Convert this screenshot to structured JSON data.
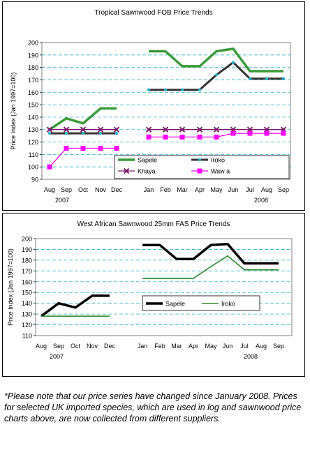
{
  "chart_data": [
    {
      "type": "line",
      "title": "Tropical Sawnwood FOB Price Trends",
      "xlabel": "",
      "ylabel": "Price Index (Jan 1997=100)",
      "ylim": [
        90,
        200
      ],
      "yticks": [
        90,
        100,
        110,
        120,
        130,
        140,
        150,
        160,
        170,
        180,
        190,
        200
      ],
      "categories": [
        "Aug",
        "Sep",
        "Oct",
        "Nov",
        "Dec",
        "Jan",
        "Feb",
        "Mar",
        "Apr",
        "May",
        "Jun",
        "Jul",
        "Aug",
        "Sep"
      ],
      "year_labels": [
        "2007",
        "2008"
      ],
      "grid": true,
      "legend_position": "bottom-right",
      "series": [
        {
          "name": "Sapele",
          "color": "#3a9a3a",
          "marker": "none",
          "values": [
            130,
            139,
            135,
            147,
            147,
            193,
            193,
            181,
            181,
            193,
            195,
            177,
            177,
            177
          ]
        },
        {
          "name": "Iroko",
          "color": "#333333",
          "marker": "dot",
          "values": [
            127,
            127,
            127,
            127,
            127,
            162,
            162,
            162,
            162,
            174,
            184,
            171,
            171,
            171
          ]
        },
        {
          "name": "Khaya",
          "color": "#7a1a6a",
          "marker": "x",
          "values": [
            130,
            130,
            130,
            130,
            130,
            130,
            130,
            130,
            130,
            130,
            130,
            130,
            130,
            130
          ]
        },
        {
          "name": "Waw a",
          "color": "#ff00ff",
          "marker": "square",
          "values": [
            100,
            115,
            115,
            115,
            115,
            124,
            124,
            124,
            124,
            124,
            127,
            127,
            127,
            127
          ]
        }
      ]
    },
    {
      "type": "line",
      "title": "West African Sawnwood 25mm FAS Price Trends",
      "xlabel": "",
      "ylabel": "Price Index (Jan 1997=100)",
      "ylim": [
        110,
        200
      ],
      "yticks": [
        110,
        120,
        130,
        140,
        150,
        160,
        170,
        180,
        190,
        200
      ],
      "categories": [
        "Aug",
        "Sep",
        "Oct",
        "Nov",
        "Dec",
        "Jan",
        "Feb",
        "Mar",
        "Apr",
        "May",
        "Jun",
        "Jul",
        "Aug",
        "Sep"
      ],
      "year_labels": [
        "2007",
        "2008"
      ],
      "grid": true,
      "legend_position": "center-right",
      "series": [
        {
          "name": "Sapele",
          "color": "#000000",
          "marker": "none",
          "values": [
            128,
            140,
            136,
            147,
            147,
            194,
            194,
            181,
            181,
            194,
            195,
            177,
            177,
            177
          ]
        },
        {
          "name": "Iroko",
          "color": "#2e8b2e",
          "marker": "none",
          "values": [
            128,
            128,
            128,
            128,
            128,
            163,
            163,
            163,
            163,
            174,
            184,
            171,
            171,
            171
          ]
        }
      ]
    }
  ],
  "footnote": "*Please note that our price series have changed since January 2008. Prices for selected UK imported species, which are used in log and sawnwood price charts above, are now collected from different suppliers."
}
